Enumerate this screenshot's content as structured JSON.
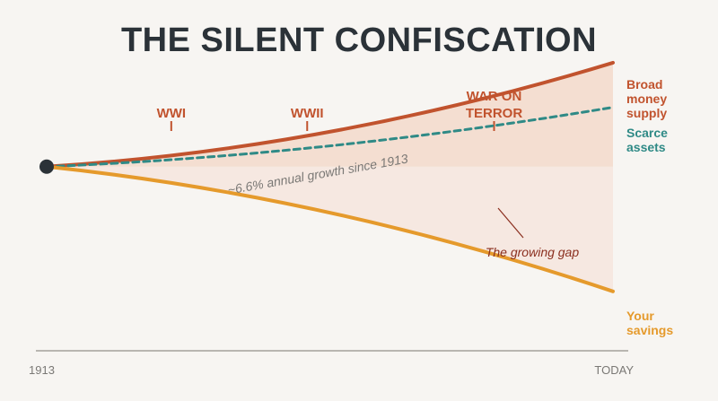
{
  "chart_data": {
    "type": "line",
    "title": "THE SILENT CONFISCATION",
    "x_labels": [
      "1913",
      "TODAY"
    ],
    "xlim": [
      0,
      1
    ],
    "ylim": [
      0,
      1
    ],
    "grid": false,
    "series": [
      {
        "name": "Broad money supply",
        "label_lines": [
          "Broad",
          "money",
          "supply"
        ],
        "color": "#c1532e",
        "style": "solid",
        "values": [
          0.62,
          0.68,
          0.97
        ]
      },
      {
        "name": "Scarce assets",
        "label_lines": [
          "Scarce",
          "assets"
        ],
        "color": "#2f8a86",
        "style": "dashed",
        "values": [
          0.62,
          0.66,
          0.82
        ]
      },
      {
        "name": "Your savings",
        "label_lines": [
          "Your",
          "savings"
        ],
        "color": "#e59a2c",
        "style": "solid",
        "values": [
          0.62,
          0.52,
          0.2
        ]
      }
    ],
    "events": [
      {
        "label_lines": [
          "WWI"
        ],
        "x": 0.22
      },
      {
        "label_lines": [
          "WWII"
        ],
        "x": 0.46
      },
      {
        "label_lines": [
          "WAR ON",
          "TERROR"
        ],
        "x": 0.79
      }
    ],
    "annotations": {
      "growth": "~6.6% annual growth since 1913",
      "gap": "The growing gap"
    },
    "colors": {
      "background": "#f7f5f2",
      "title": "#2b3238",
      "axis": "#b9b6b1",
      "tick_text": "#7a7875",
      "start_dot": "#2b3238",
      "gap_fill": "#f3d9cb",
      "annotation_text": "#7a7875"
    }
  }
}
